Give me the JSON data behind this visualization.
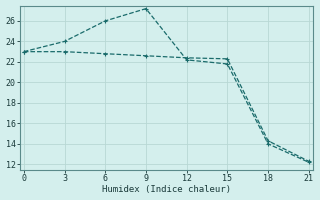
{
  "xlabel": "Humidex (Indice chaleur)",
  "background_color": "#d4efed",
  "grid_color": "#b8d8d4",
  "line_color": "#1a6b6b",
  "line1_x": [
    0,
    3,
    6,
    9,
    12,
    15,
    18,
    21
  ],
  "line1_y": [
    23.0,
    23.0,
    22.8,
    22.6,
    22.4,
    22.3,
    14.3,
    12.3
  ],
  "line2_x": [
    0,
    3,
    6,
    9,
    12,
    15,
    18,
    21
  ],
  "line2_y": [
    23.0,
    24.0,
    26.0,
    27.2,
    22.2,
    21.8,
    14.0,
    12.2
  ],
  "xlim": [
    -0.3,
    21.3
  ],
  "ylim": [
    11.5,
    27.5
  ],
  "xticks": [
    0,
    3,
    6,
    9,
    12,
    15,
    18,
    21
  ],
  "yticks": [
    12,
    14,
    16,
    18,
    20,
    22,
    24,
    26
  ]
}
